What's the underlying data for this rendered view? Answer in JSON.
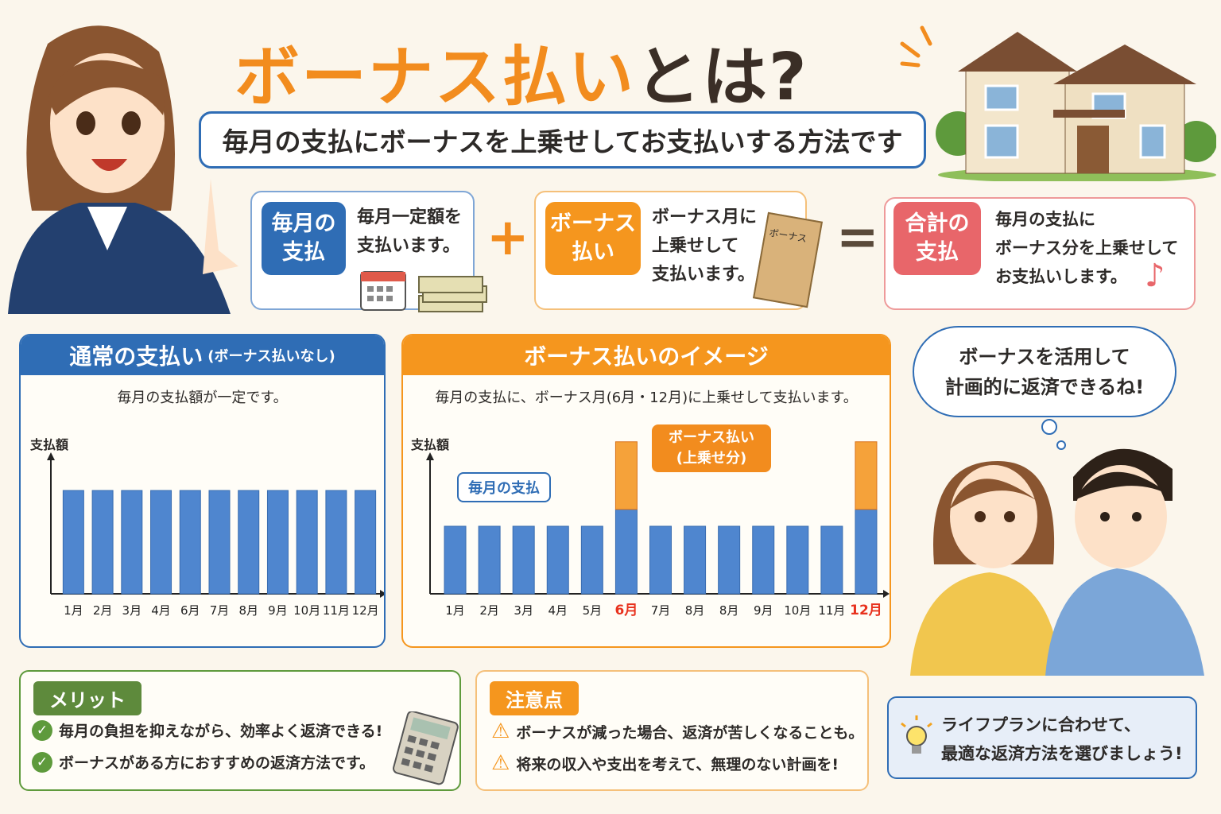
{
  "title": {
    "highlight": "ボーナス払い",
    "rest": "とは?"
  },
  "subtitle": "毎月の支払にボーナスを上乗せしてお支払いする方法です",
  "cards": [
    {
      "tag": "毎月の\n支払",
      "text": "毎月一定額を\n支払います。",
      "color": "#2f6db5"
    },
    {
      "tag": "ボーナス\n払い",
      "text": "ボーナス月に\n上乗せして\n支払います。",
      "envelope": "ボーナス",
      "color": "#f5961e"
    },
    {
      "tag": "合計の\n支払",
      "text": "毎月の支払に\nボーナス分を上乗せして\nお支払いします。",
      "color": "#e8666a"
    }
  ],
  "operators": {
    "plus": "+",
    "equals": "="
  },
  "speech": "ボーナスを活用して\n計画的に返済できるね!",
  "chart_data": [
    {
      "type": "bar",
      "title": "通常の支払い",
      "title_note": "(ボーナス払いなし)",
      "description": "毎月の支払額が一定です。",
      "ylabel": "支払額",
      "categories": [
        "1月",
        "2月",
        "3月",
        "4月",
        "6月",
        "7月",
        "8月",
        "9月",
        "10月",
        "11月",
        "12月"
      ],
      "values": [
        1,
        1,
        1,
        1,
        1,
        1,
        1,
        1,
        1,
        1,
        1
      ],
      "color": "#4f86cf"
    },
    {
      "type": "bar",
      "title": "ボーナス払いのイメージ",
      "description": "毎月の支払に、ボーナス月(6月・12月)に上乗せして支払います。",
      "ylabel": "支払額",
      "categories": [
        "1月",
        "2月",
        "3月",
        "4月",
        "5月",
        "6月",
        "7月",
        "8月",
        "8月",
        "9月",
        "10月",
        "11月",
        "12月"
      ],
      "series": [
        {
          "name": "毎月の支払",
          "values": [
            1,
            1,
            1,
            1,
            1,
            1.25,
            1,
            1,
            1,
            1,
            1,
            1,
            1.25
          ],
          "color": "#4f86cf"
        },
        {
          "name": "ボーナス払い(上乗せ分)",
          "values": [
            0,
            0,
            0,
            0,
            0,
            1,
            0,
            0,
            0,
            0,
            0,
            0,
            1
          ],
          "color": "#f5a23a"
        }
      ],
      "highlight_categories": [
        5,
        12
      ],
      "highlight_color": "#e8321e",
      "callouts": {
        "monthly": "毎月の支払",
        "bonus": "ボーナス払い\n(上乗せ分)"
      }
    }
  ],
  "merit": {
    "tag": "メリット",
    "items": [
      "毎月の負担を抑えながら、効率よく返済できる!",
      "ボーナスがある方におすすめの返済方法です。"
    ]
  },
  "caution": {
    "tag": "注意点",
    "items": [
      "ボーナスが減った場合、返済が苦しくなることも。",
      "将来の収入や支出を考えて、無理のない計画を!"
    ]
  },
  "tip": "ライフプランに合わせて、\n最適な返済方法を選びましょう!"
}
